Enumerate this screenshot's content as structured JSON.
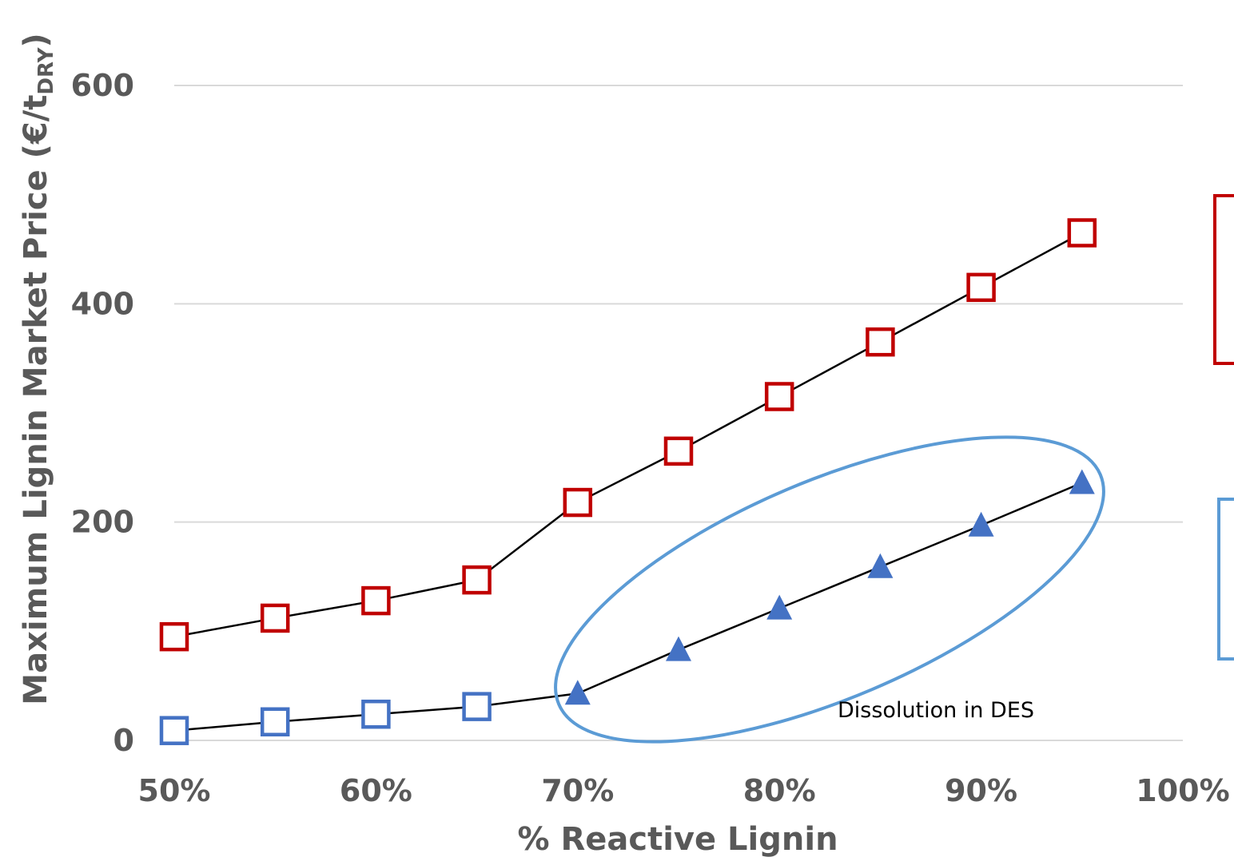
{
  "chart_data": {
    "type": "line",
    "xlabel": "% Reactive Lignin",
    "ylabel": {
      "main": "Maximum Lignin Market Price (€/t",
      "sub": "DRY",
      "close": ")"
    },
    "x_ticks": [
      "50%",
      "60%",
      "70%",
      "80%",
      "90%",
      "100%"
    ],
    "y_ticks": [
      "0",
      "200",
      "400",
      "600"
    ],
    "xlim": [
      50,
      100
    ],
    "ylim": [
      0,
      600
    ],
    "grid": true,
    "annotation": "Dissolution in DES",
    "series": [
      {
        "x": [
          50,
          55,
          60,
          65,
          70,
          75,
          80,
          85,
          90,
          95
        ],
        "y": [
          95,
          112,
          128,
          147,
          218,
          265,
          315,
          365,
          415,
          465
        ],
        "marker": "square-open",
        "color": "#c00000"
      },
      {
        "x": [
          50,
          55,
          60,
          65,
          70,
          75,
          80,
          85,
          90,
          95
        ],
        "y": [
          9,
          17,
          24,
          31,
          43,
          83,
          121,
          159,
          197,
          236
        ],
        "markers": [
          "square-open",
          "square-open",
          "square-open",
          "square-open",
          "triangle",
          "triangle",
          "triangle",
          "triangle",
          "triangle",
          "triangle"
        ],
        "color": "#4472c4"
      }
    ],
    "colors": {
      "line": "#000000",
      "grid": "#d9d9d9",
      "red": "#c00000",
      "blue": "#4472c4",
      "ellipse": "#5b9bd5",
      "text": "#595959"
    }
  }
}
